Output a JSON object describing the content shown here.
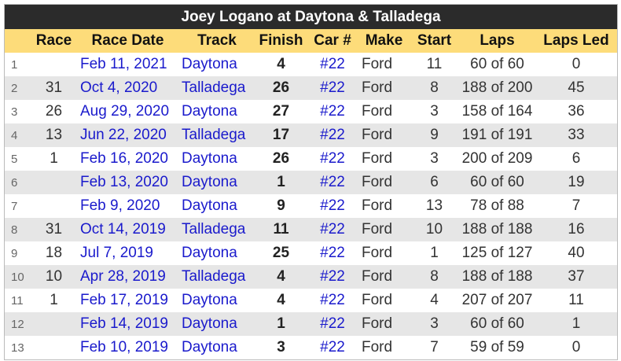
{
  "title": "Joey Logano at Daytona & Talladega",
  "columns": [
    "",
    "Race",
    "Race Date",
    "Track",
    "Finish",
    "Car #",
    "Make",
    "Start",
    "Laps",
    "Laps Led"
  ],
  "rows": [
    [
      "1",
      "",
      "Feb 11, 2021",
      "Daytona",
      "4",
      "#22",
      "Ford",
      "11",
      "60 of 60",
      "0"
    ],
    [
      "2",
      "31",
      "Oct 4, 2020",
      "Talladega",
      "26",
      "#22",
      "Ford",
      "8",
      "188 of 200",
      "45"
    ],
    [
      "3",
      "26",
      "Aug 29, 2020",
      "Daytona",
      "27",
      "#22",
      "Ford",
      "3",
      "158 of 164",
      "36"
    ],
    [
      "4",
      "13",
      "Jun 22, 2020",
      "Talladega",
      "17",
      "#22",
      "Ford",
      "9",
      "191 of 191",
      "33"
    ],
    [
      "5",
      "1",
      "Feb 16, 2020",
      "Daytona",
      "26",
      "#22",
      "Ford",
      "3",
      "200 of 209",
      "6"
    ],
    [
      "6",
      "",
      "Feb 13, 2020",
      "Daytona",
      "1",
      "#22",
      "Ford",
      "6",
      "60 of 60",
      "19"
    ],
    [
      "7",
      "",
      "Feb 9, 2020",
      "Daytona",
      "9",
      "#22",
      "Ford",
      "13",
      "78 of 88",
      "7"
    ],
    [
      "8",
      "31",
      "Oct 14, 2019",
      "Talladega",
      "11",
      "#22",
      "Ford",
      "10",
      "188 of 188",
      "16"
    ],
    [
      "9",
      "18",
      "Jul 7, 2019",
      "Daytona",
      "25",
      "#22",
      "Ford",
      "1",
      "125 of 127",
      "40"
    ],
    [
      "10",
      "10",
      "Apr 28, 2019",
      "Talladega",
      "4",
      "#22",
      "Ford",
      "8",
      "188 of 188",
      "37"
    ],
    [
      "11",
      "1",
      "Feb 17, 2019",
      "Daytona",
      "4",
      "#22",
      "Ford",
      "4",
      "207 of 207",
      "11"
    ],
    [
      "12",
      "",
      "Feb 14, 2019",
      "Daytona",
      "1",
      "#22",
      "Ford",
      "3",
      "60 of 60",
      "1"
    ],
    [
      "13",
      "",
      "Feb 10, 2019",
      "Daytona",
      "3",
      "#22",
      "Ford",
      "7",
      "59 of 59",
      "0"
    ]
  ],
  "colors": {
    "title_bg": "#2b2b2b",
    "header_bg": "#fddc7a",
    "alt_row": "#e6e6e6",
    "link": "#1a1acc"
  }
}
